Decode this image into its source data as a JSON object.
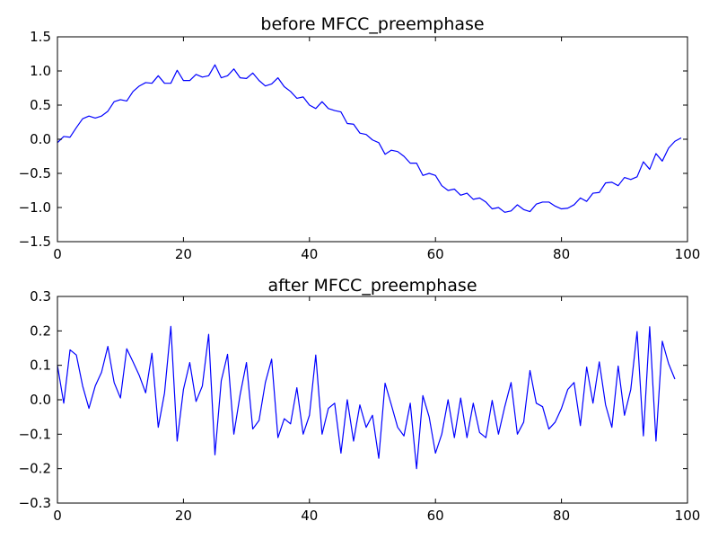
{
  "chart_data": [
    {
      "type": "line",
      "title": "before MFCC_preemphase",
      "xlabel": "",
      "ylabel": "",
      "xlim": [
        0,
        100
      ],
      "ylim": [
        -1.5,
        1.5
      ],
      "xticks": [
        0,
        20,
        40,
        60,
        80,
        100
      ],
      "xtick_labels": [
        "0",
        "20",
        "40",
        "60",
        "80",
        "100"
      ],
      "yticks": [
        -1.5,
        -1.0,
        -0.5,
        0.0,
        0.5,
        1.0,
        1.5
      ],
      "ytick_labels": [
        "−1.5",
        "−1.0",
        "−0.5",
        "0.0",
        "0.5",
        "1.0",
        "1.5"
      ],
      "grid": false,
      "legend": "none",
      "series": [
        {
          "color": "#0000ff",
          "x": [
            0,
            1,
            2,
            3,
            4,
            5,
            6,
            7,
            8,
            9,
            10,
            11,
            12,
            13,
            14,
            15,
            16,
            17,
            18,
            19,
            20,
            21,
            22,
            23,
            24,
            25,
            26,
            27,
            28,
            29,
            30,
            31,
            32,
            33,
            34,
            35,
            36,
            37,
            38,
            39,
            40,
            41,
            42,
            43,
            44,
            45,
            46,
            47,
            48,
            49,
            50,
            51,
            52,
            53,
            54,
            55,
            56,
            57,
            58,
            59,
            60,
            61,
            62,
            63,
            64,
            65,
            66,
            67,
            68,
            69,
            70,
            71,
            72,
            73,
            74,
            75,
            76,
            77,
            78,
            79,
            80,
            81,
            82,
            83,
            84,
            85,
            86,
            87,
            88,
            89,
            90,
            91,
            92,
            93,
            94,
            95,
            96,
            97,
            98,
            99
          ],
          "y": [
            -0.05,
            0.04,
            0.03,
            0.17,
            0.3,
            0.34,
            0.31,
            0.34,
            0.41,
            0.55,
            0.58,
            0.56,
            0.7,
            0.78,
            0.83,
            0.82,
            0.93,
            0.82,
            0.82,
            1.01,
            0.86,
            0.86,
            0.95,
            0.91,
            0.93,
            1.09,
            0.9,
            0.93,
            1.03,
            0.9,
            0.89,
            0.97,
            0.86,
            0.78,
            0.81,
            0.9,
            0.77,
            0.7,
            0.6,
            0.62,
            0.5,
            0.45,
            0.55,
            0.45,
            0.42,
            0.4,
            0.23,
            0.22,
            0.09,
            0.07,
            -0.01,
            -0.05,
            -0.22,
            -0.16,
            -0.18,
            -0.25,
            -0.35,
            -0.35,
            -0.53,
            -0.5,
            -0.53,
            -0.68,
            -0.75,
            -0.73,
            -0.82,
            -0.79,
            -0.88,
            -0.86,
            -0.92,
            -1.02,
            -1.0,
            -1.07,
            -1.05,
            -0.96,
            -1.03,
            -1.06,
            -0.95,
            -0.92,
            -0.92,
            -0.98,
            -1.02,
            -1.01,
            -0.96,
            -0.86,
            -0.91,
            -0.79,
            -0.78,
            -0.64,
            -0.63,
            -0.68,
            -0.56,
            -0.59,
            -0.55,
            -0.33,
            -0.44,
            -0.21,
            -0.32,
            -0.13,
            -0.03,
            0.02
          ]
        }
      ]
    },
    {
      "type": "line",
      "title": "after MFCC_preemphase",
      "xlabel": "",
      "ylabel": "",
      "xlim": [
        0,
        100
      ],
      "ylim": [
        -0.3,
        0.3
      ],
      "xticks": [
        0,
        20,
        40,
        60,
        80,
        100
      ],
      "xtick_labels": [
        "0",
        "20",
        "40",
        "60",
        "80",
        "100"
      ],
      "yticks": [
        -0.3,
        -0.2,
        -0.1,
        0.0,
        0.1,
        0.2,
        0.3
      ],
      "ytick_labels": [
        "−0.3",
        "−0.2",
        "−0.1",
        "0.0",
        "0.1",
        "0.2",
        "0.3"
      ],
      "grid": false,
      "legend": "none",
      "series": [
        {
          "color": "#0000ff",
          "x": [
            0,
            1,
            2,
            3,
            4,
            5,
            6,
            7,
            8,
            9,
            10,
            11,
            12,
            13,
            14,
            15,
            16,
            17,
            18,
            19,
            20,
            21,
            22,
            23,
            24,
            25,
            26,
            27,
            28,
            29,
            30,
            31,
            32,
            33,
            34,
            35,
            36,
            37,
            38,
            39,
            40,
            41,
            42,
            43,
            44,
            45,
            46,
            47,
            48,
            49,
            50,
            51,
            52,
            53,
            54,
            55,
            56,
            57,
            58,
            59,
            60,
            61,
            62,
            63,
            64,
            65,
            66,
            67,
            68,
            69,
            70,
            71,
            72,
            73,
            74,
            75,
            76,
            77,
            78,
            79,
            80,
            81,
            82,
            83,
            84,
            85,
            86,
            87,
            88,
            89,
            90,
            91,
            92,
            93,
            94,
            95,
            96,
            97,
            98
          ],
          "y": [
            0.1,
            -0.01,
            0.145,
            0.13,
            0.04,
            -0.025,
            0.04,
            0.08,
            0.155,
            0.05,
            0.005,
            0.148,
            0.11,
            0.07,
            0.02,
            0.135,
            -0.08,
            0.02,
            0.213,
            -0.12,
            0.03,
            0.108,
            -0.005,
            0.04,
            0.19,
            -0.16,
            0.055,
            0.132,
            -0.1,
            0.015,
            0.108,
            -0.085,
            -0.06,
            0.05,
            0.118,
            -0.11,
            -0.055,
            -0.07,
            0.035,
            -0.1,
            -0.045,
            0.13,
            -0.1,
            -0.025,
            -0.01,
            -0.155,
            0.0,
            -0.12,
            -0.015,
            -0.08,
            -0.045,
            -0.17,
            0.048,
            -0.015,
            -0.08,
            -0.105,
            -0.01,
            -0.2,
            0.012,
            -0.05,
            -0.155,
            -0.1,
            0.0,
            -0.11,
            0.005,
            -0.11,
            -0.01,
            -0.095,
            -0.11,
            -0.002,
            -0.1,
            -0.02,
            0.05,
            -0.1,
            -0.065,
            0.085,
            -0.01,
            -0.02,
            -0.085,
            -0.065,
            -0.025,
            0.03,
            0.05,
            -0.075,
            0.095,
            -0.01,
            0.11,
            -0.015,
            -0.08,
            0.098,
            -0.045,
            0.03,
            0.198,
            -0.105,
            0.212,
            -0.12,
            0.17,
            0.105,
            0.06
          ]
        }
      ]
    }
  ]
}
